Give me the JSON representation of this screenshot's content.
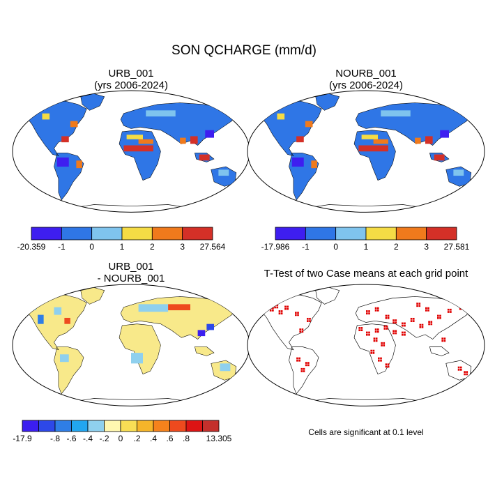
{
  "figure": {
    "title": "SON QCHARGE (mm/d)"
  },
  "panels": [
    {
      "id": "urb",
      "title_line1": "URB_001",
      "title_line2": "(yrs 2006-2024)",
      "colorbar": {
        "min_label": "-20.359",
        "max_label": "27.564",
        "tick_labels": [
          "-1",
          "0",
          "1",
          "2",
          "3"
        ],
        "colors": [
          "#3e1ef0",
          "#2f76e6",
          "#7fc4ee",
          "#f5dc45",
          "#f07a1c",
          "#d43027"
        ]
      }
    },
    {
      "id": "nourb",
      "title_line1": "NOURB_001",
      "title_line2": "(yrs 2006-2024)",
      "colorbar": {
        "min_label": "-17.986",
        "max_label": "27.581",
        "tick_labels": [
          "-1",
          "0",
          "1",
          "2",
          "3"
        ],
        "colors": [
          "#3e1ef0",
          "#2f76e6",
          "#7fc4ee",
          "#f5dc45",
          "#f07a1c",
          "#d43027"
        ]
      }
    },
    {
      "id": "diff",
      "title_line1": "URB_001",
      "title_line2": "- NOURB_001",
      "colorbar": {
        "min_label": "-17.9",
        "max_label": "13.305",
        "tick_labels": [
          "-.8",
          "-.6",
          "-.4",
          "-.2",
          "0",
          ".2",
          ".4",
          ".6",
          ".8"
        ],
        "colors": [
          "#3b1ef0",
          "#2d48e8",
          "#2f7ee6",
          "#22a6f0",
          "#8fd0ee",
          "#fff7b0",
          "#f8de55",
          "#f5b52a",
          "#f5821c",
          "#ee4a1e",
          "#dd1414",
          "#c4302c"
        ]
      }
    },
    {
      "id": "ttest",
      "title_line1": "T-Test of two Case means at each grid point",
      "note": "Cells are significant at 0.1 level",
      "marker_color": "#e00000"
    }
  ]
}
